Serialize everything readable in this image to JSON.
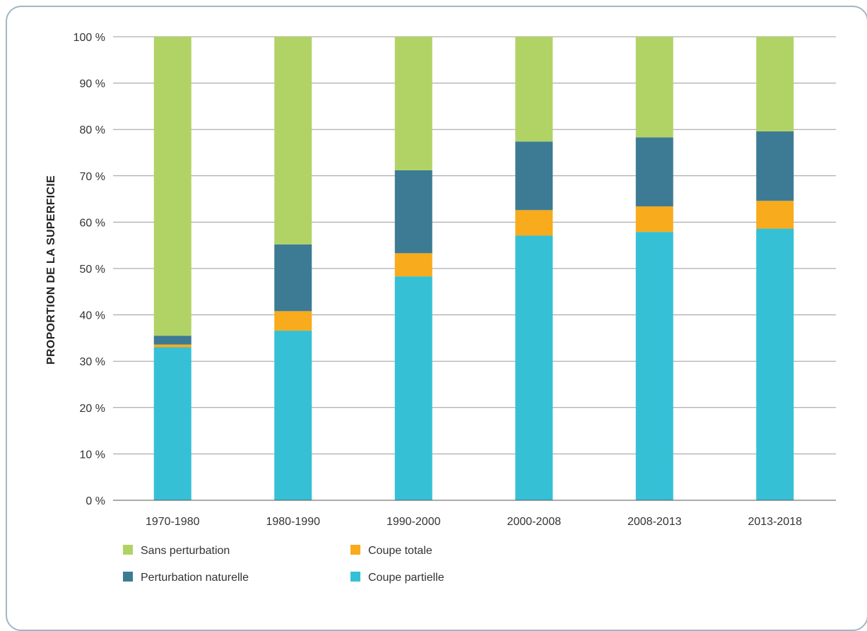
{
  "chart_data": {
    "type": "bar",
    "stacked": true,
    "title": "",
    "xlabel": "",
    "ylabel": "PROPORTION DE LA SUPERFICIE",
    "ylim": [
      0,
      100
    ],
    "yticks": [
      "0 %",
      "10 %",
      "20 %",
      "30 %",
      "40 %",
      "50 %",
      "60 %",
      "70 %",
      "80 %",
      "90 %",
      "100 %"
    ],
    "grid": true,
    "legend_position": "bottom-left",
    "categories": [
      "1970-1980",
      "1980-1990",
      "1990-2000",
      "2000-2008",
      "2008-2013",
      "2013-2018"
    ],
    "series": [
      {
        "name": "Coupe partielle",
        "color": "#35c0d5",
        "values": [
          33.0,
          36.6,
          48.3,
          57.1,
          57.9,
          58.6
        ]
      },
      {
        "name": "Coupe totale",
        "color": "#f8ab1c",
        "values": [
          0.6,
          4.2,
          5.0,
          5.5,
          5.5,
          6.0
        ]
      },
      {
        "name": "Perturbation naturelle",
        "color": "#3d7b94",
        "values": [
          1.9,
          14.4,
          17.9,
          14.8,
          14.9,
          15.0
        ]
      },
      {
        "name": "Sans perturbation",
        "color": "#b1d365",
        "values": [
          64.5,
          44.8,
          28.8,
          22.6,
          21.7,
          20.4
        ]
      }
    ],
    "legend_order": [
      "Sans perturbation",
      "Coupe totale",
      "Perturbation naturelle",
      "Coupe partielle"
    ]
  }
}
